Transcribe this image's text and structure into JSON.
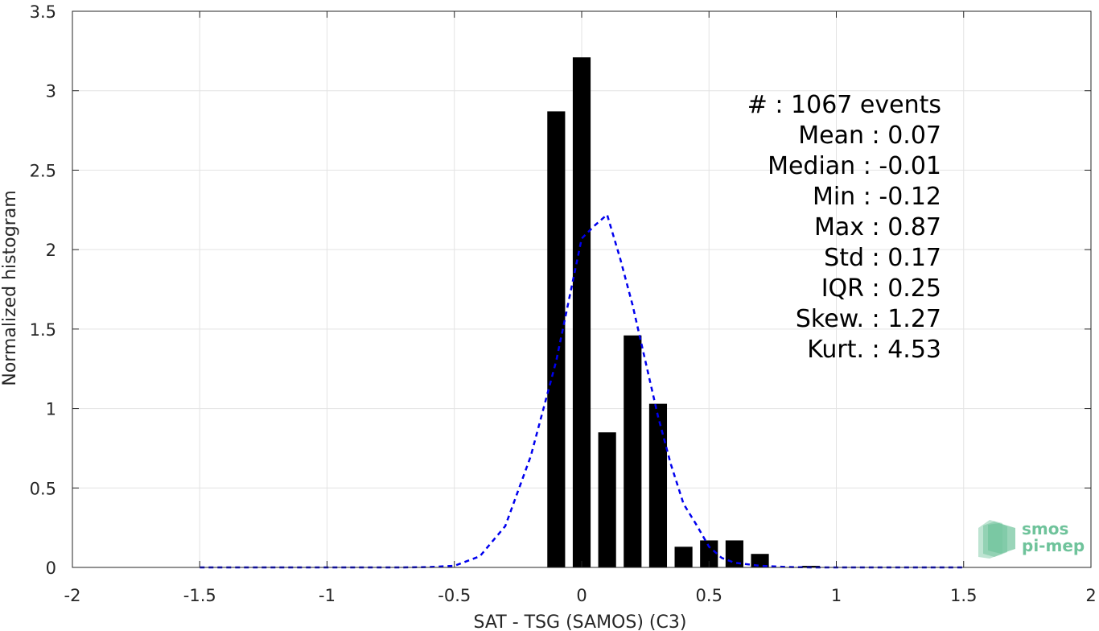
{
  "chart_data": {
    "type": "bar",
    "xlabel": "SAT - TSG (SAMOS) (C3)",
    "ylabel": "Normalized histogram",
    "xlim": [
      -2,
      2
    ],
    "ylim": [
      0,
      3.5
    ],
    "grid": true,
    "x_ticks": [
      "-2",
      "-1.5",
      "-1",
      "-0.5",
      "0",
      "0.5",
      "1",
      "1.5",
      "2"
    ],
    "y_ticks": [
      "0",
      "0.5",
      "1",
      "1.5",
      "2",
      "2.5",
      "3",
      "3.5"
    ],
    "bars": {
      "x": [
        -0.1,
        0.0,
        0.1,
        0.2,
        0.3,
        0.4,
        0.5,
        0.6,
        0.7,
        0.9
      ],
      "values": [
        2.87,
        3.21,
        0.85,
        1.46,
        1.03,
        0.13,
        0.17,
        0.17,
        0.085,
        0.01
      ],
      "color": "#000000"
    },
    "fit_curve": {
      "style": "dashed",
      "color": "#0000ee",
      "x": [
        -1.5,
        -1.4,
        -1.3,
        -1.2,
        -1.1,
        -1.0,
        -0.9,
        -0.8,
        -0.7,
        -0.6,
        -0.5,
        -0.4,
        -0.3,
        -0.2,
        -0.1,
        0.0,
        0.05,
        0.1,
        0.15,
        0.2,
        0.25,
        0.3,
        0.35,
        0.4,
        0.45,
        0.5,
        0.55,
        0.6,
        0.7,
        0.8,
        0.9,
        1.0,
        1.1,
        1.2,
        1.3,
        1.4,
        1.5
      ],
      "y": [
        0,
        0,
        0,
        0,
        0,
        0,
        0,
        0,
        0,
        0.002,
        0.01,
        0.07,
        0.26,
        0.7,
        1.3,
        2.07,
        2.15,
        2.22,
        1.95,
        1.65,
        1.3,
        0.95,
        0.65,
        0.4,
        0.27,
        0.13,
        0.06,
        0.03,
        0.01,
        0.003,
        0,
        0,
        0,
        0,
        0,
        0,
        0
      ]
    },
    "stats": [
      {
        "label": "#  : 1067 events"
      },
      {
        "label": "Mean : 0.07"
      },
      {
        "label": "Median : -0.01"
      },
      {
        "label": "Min : -0.12"
      },
      {
        "label": "Max : 0.87"
      },
      {
        "label": "Std : 0.17"
      },
      {
        "label": "IQR : 0.25"
      },
      {
        "label": "Skew. : 1.27"
      },
      {
        "label": "Kurt. : 4.53"
      }
    ]
  },
  "logo": {
    "line1": "smos",
    "line2": "pi-mep",
    "color": "#6fc39b"
  }
}
